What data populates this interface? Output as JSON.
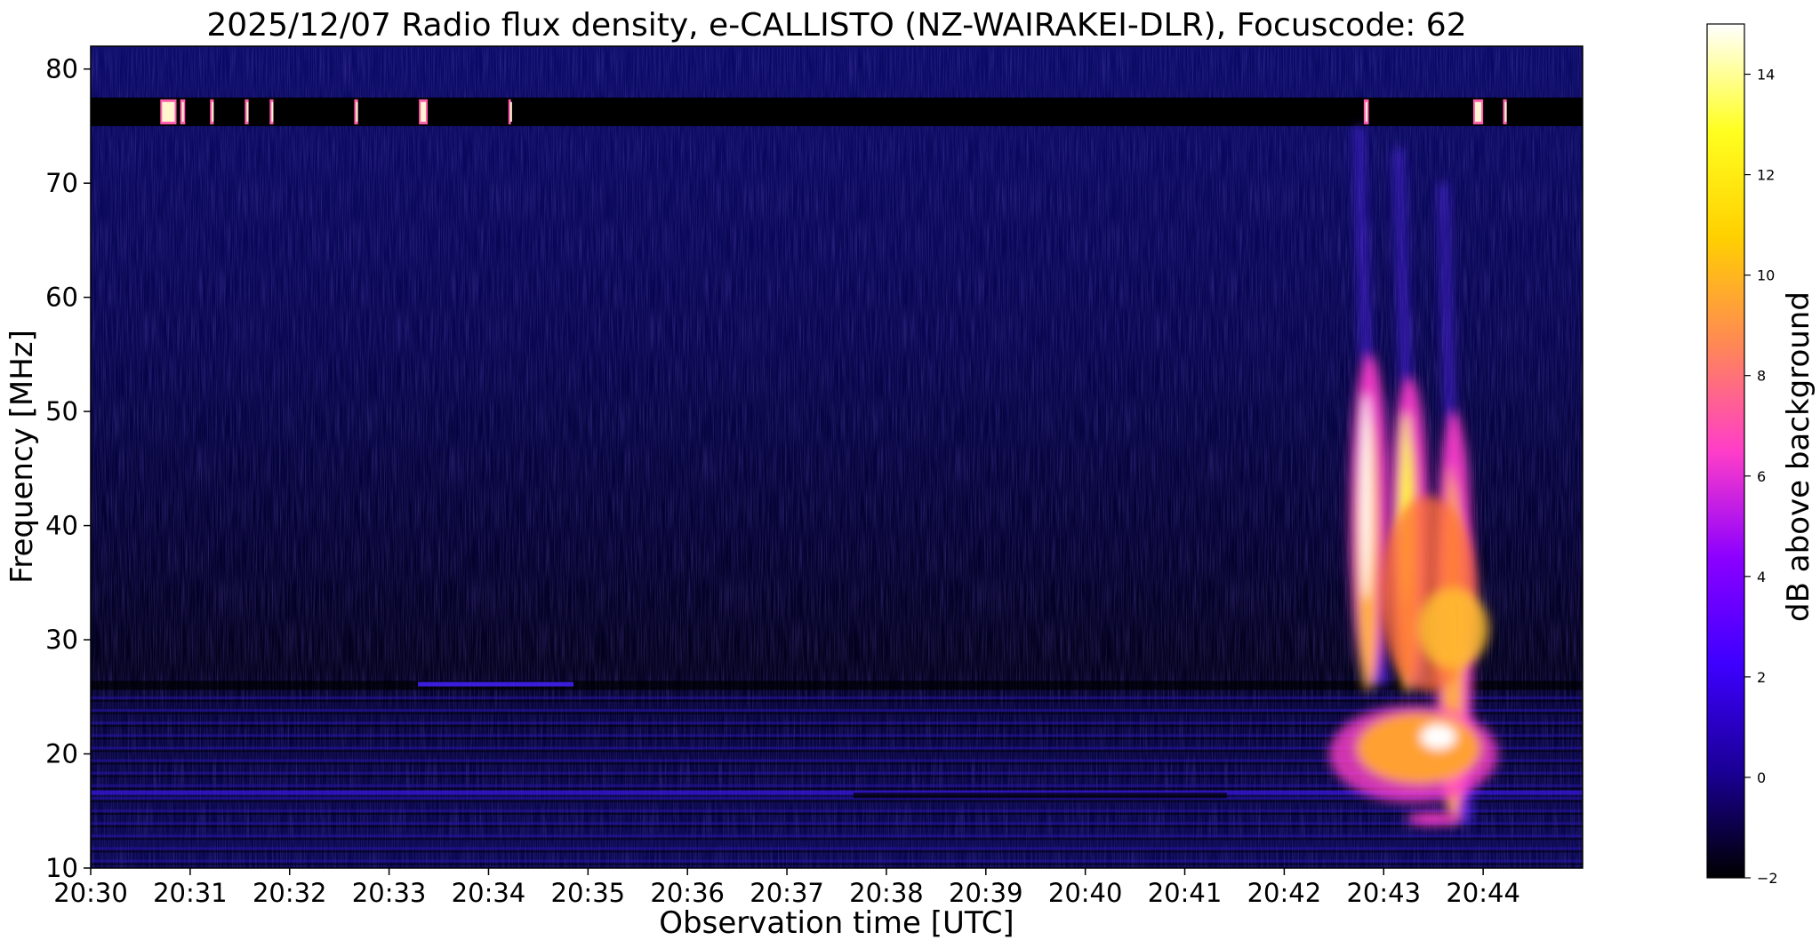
{
  "chart_data": {
    "type": "heatmap",
    "title": "2025/12/07  Radio flux density, e-CALLISTO (NZ-WAIRAKEI-DLR), Focuscode: 62",
    "xlabel": "Observation time [UTC]",
    "ylabel": "Frequency [MHz]",
    "colorbar_label": "dB above background",
    "xlim": [
      "20:30",
      "20:45"
    ],
    "ylim": [
      10,
      82
    ],
    "x_ticks": [
      "20:30",
      "20:31",
      "20:32",
      "20:33",
      "20:34",
      "20:35",
      "20:36",
      "20:37",
      "20:38",
      "20:39",
      "20:40",
      "20:41",
      "20:42",
      "20:43",
      "20:44"
    ],
    "y_ticks": [
      10,
      20,
      30,
      40,
      50,
      60,
      70,
      80
    ],
    "colorbar_range": [
      -2,
      15
    ],
    "colorbar_ticks": [
      -2,
      0,
      2,
      4,
      6,
      8,
      10,
      12,
      14
    ],
    "colormap": [
      "#000000",
      "#1a0096",
      "#3d00ff",
      "#8b00ff",
      "#ff3ec8",
      "#ff8855",
      "#ffd000",
      "#ffff20",
      "#ffffff"
    ],
    "grid": false,
    "features": [
      {
        "label": "interference band",
        "freq_range": [
          75,
          77.5
        ],
        "time_range": [
          "20:30",
          "20:45"
        ],
        "db": -2
      },
      {
        "label": "type III burst 1",
        "time": "20:42.75",
        "freq_range": [
          26,
          55
        ],
        "peak_db": 15
      },
      {
        "label": "type III burst 2",
        "time": "20:43.15",
        "freq_range": [
          26,
          53
        ],
        "peak_db": 13.5
      },
      {
        "label": "type III burst 3",
        "time": "20:43.6",
        "freq_range": [
          14,
          50
        ],
        "peak_db": 12
      }
    ]
  }
}
